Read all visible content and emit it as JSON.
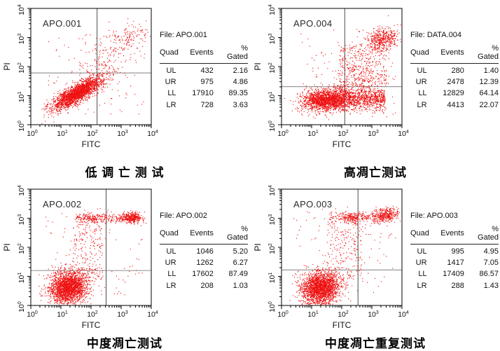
{
  "figure": {
    "background": "#ffffff",
    "dot_color": "#ee1212",
    "axis_color": "#000000",
    "quad_vline_color": "#4d4d4d",
    "quad_hline_color": "#9a9a9a"
  },
  "chart_data": [
    {
      "type": "scatter",
      "plot_name": "APO.001",
      "file": "File: APO.001",
      "caption": "低 调 亡 测 试",
      "xlabel": "FITC",
      "ylabel": "PI",
      "xscale": "log",
      "yscale": "log",
      "xlim_log": [
        0,
        4
      ],
      "ylim_log": [
        0,
        4
      ],
      "tick_exponents": [
        0,
        1,
        2,
        3,
        4
      ],
      "quadrant_gates_log": {
        "x": 2.2,
        "y": 1.78
      },
      "quadrants": {
        "UL": {
          "events": 432,
          "pct_gated": 2.16
        },
        "UR": {
          "events": 975,
          "pct_gated": 4.86
        },
        "LL": {
          "events": 17910,
          "pct_gated": 89.35
        },
        "LR": {
          "events": 728,
          "pct_gated": 3.63
        }
      },
      "table": {
        "headers": [
          "Quad",
          "Events",
          "% Gated"
        ],
        "rows": [
          [
            "UL",
            "432",
            "2.16"
          ],
          [
            "UR",
            "975",
            "4.86"
          ],
          [
            "LL",
            "17910",
            "89.35"
          ],
          [
            "LR",
            "728",
            "3.63"
          ]
        ]
      },
      "clusters": [
        {
          "kind": "gauss",
          "cx": 1.55,
          "cy": 1.08,
          "sx": 0.45,
          "sy": 0.14,
          "rot": 33,
          "n": 2300
        },
        {
          "kind": "gauss",
          "cx": 2.5,
          "cy": 2.1,
          "sx": 0.45,
          "sy": 0.4,
          "rot": 35,
          "n": 160
        },
        {
          "kind": "gauss",
          "cx": 3.25,
          "cy": 3.0,
          "sx": 0.4,
          "sy": 0.22,
          "rot": 15,
          "n": 130
        },
        {
          "kind": "uniform",
          "x0": 0.5,
          "x1": 3.8,
          "y0": 0.3,
          "y1": 3.2,
          "n": 110
        }
      ]
    },
    {
      "type": "scatter",
      "plot_name": "APO.004",
      "file": "File: DATA.004",
      "caption": "高凋亡测试",
      "xlabel": "FITC",
      "ylabel": "PI",
      "xscale": "log",
      "yscale": "log",
      "xlim_log": [
        0,
        4
      ],
      "ylim_log": [
        0,
        4
      ],
      "tick_exponents": [
        0,
        1,
        2,
        3,
        4
      ],
      "quadrant_gates_log": {
        "x": 2.1,
        "y": 1.31
      },
      "quadrants": {
        "UL": {
          "events": 280,
          "pct_gated": 1.4
        },
        "UR": {
          "events": 2478,
          "pct_gated": 12.39
        },
        "LL": {
          "events": 12829,
          "pct_gated": 64.14
        },
        "LR": {
          "events": 4413,
          "pct_gated": 22.07
        }
      },
      "table": {
        "headers": [
          "Quad",
          "Events",
          "% Gated"
        ],
        "rows": [
          [
            "UL",
            "280",
            "1.40"
          ],
          [
            "UR",
            "2478",
            "12.39"
          ],
          [
            "LL",
            "12829",
            "64.14"
          ],
          [
            "LR",
            "4413",
            "22.07"
          ]
        ]
      },
      "clusters": [
        {
          "kind": "gauss",
          "cx": 1.45,
          "cy": 0.85,
          "sx": 0.38,
          "sy": 0.18,
          "rot": 3,
          "n": 1700
        },
        {
          "kind": "hband",
          "x0": 1.7,
          "x1": 3.45,
          "y": 0.9,
          "sy": 0.2,
          "n": 1100
        },
        {
          "kind": "gauss",
          "cx": 3.35,
          "cy": 2.95,
          "sx": 0.28,
          "sy": 0.2,
          "rot": 20,
          "n": 450
        },
        {
          "kind": "uniform",
          "x0": 1.9,
          "x1": 3.5,
          "y0": 1.3,
          "y1": 2.75,
          "n": 330
        },
        {
          "kind": "gauss",
          "cx": 2.6,
          "cy": 1.6,
          "sx": 0.5,
          "sy": 0.3,
          "rot": 20,
          "n": 150
        },
        {
          "kind": "uniform",
          "x0": 0.55,
          "x1": 3.8,
          "y0": 0.25,
          "y1": 3.3,
          "n": 120
        }
      ]
    },
    {
      "type": "scatter",
      "plot_name": "APO.002",
      "file": "File: APO.002",
      "caption": "中度凋亡测试",
      "xlabel": "FITC",
      "ylabel": "PI",
      "xscale": "log",
      "yscale": "log",
      "xlim_log": [
        0,
        4
      ],
      "ylim_log": [
        0,
        4
      ],
      "tick_exponents": [
        0,
        1,
        2,
        3,
        4
      ],
      "quadrant_gates_log": {
        "x": 2.5,
        "y": 1.2
      },
      "quadrants": {
        "UL": {
          "events": 1046,
          "pct_gated": 5.2
        },
        "UR": {
          "events": 1262,
          "pct_gated": 6.27
        },
        "LL": {
          "events": 17602,
          "pct_gated": 87.49
        },
        "LR": {
          "events": 208,
          "pct_gated": 1.03
        }
      },
      "table": {
        "headers": [
          "Quad",
          "Events",
          "% Gated"
        ],
        "rows": [
          [
            "UL",
            "1046",
            "5.20"
          ],
          [
            "UR",
            "1262",
            "6.27"
          ],
          [
            "LL",
            "17602",
            "87.49"
          ],
          [
            "LR",
            "208",
            "1.03"
          ]
        ]
      },
      "clusters": [
        {
          "kind": "gauss",
          "cx": 1.25,
          "cy": 0.62,
          "sx": 0.32,
          "sy": 0.28,
          "rot": 28,
          "n": 2300
        },
        {
          "kind": "hband",
          "x0": 1.5,
          "x1": 3.6,
          "y": 3.0,
          "sy": 0.09,
          "n": 240
        },
        {
          "kind": "gauss",
          "cx": 3.35,
          "cy": 3.02,
          "sx": 0.18,
          "sy": 0.09,
          "rot": 0,
          "n": 300
        },
        {
          "kind": "gauss",
          "cx": 2.0,
          "cy": 3.0,
          "sx": 0.18,
          "sy": 0.08,
          "rot": 0,
          "n": 90
        },
        {
          "kind": "uniform",
          "x0": 1.4,
          "x1": 2.4,
          "y0": 0.9,
          "y1": 2.9,
          "n": 190
        },
        {
          "kind": "uniform",
          "x0": 0.4,
          "x1": 3.7,
          "y0": 0.15,
          "y1": 3.35,
          "n": 100
        }
      ]
    },
    {
      "type": "scatter",
      "plot_name": "APO.003",
      "file": "File: APO.003",
      "caption": "中度凋亡重复测试",
      "xlabel": "FITC",
      "ylabel": "PI",
      "xscale": "log",
      "yscale": "log",
      "xlim_log": [
        0,
        4
      ],
      "ylim_log": [
        0,
        4
      ],
      "tick_exponents": [
        0,
        1,
        2,
        3,
        4
      ],
      "quadrant_gates_log": {
        "x": 2.54,
        "y": 1.22
      },
      "quadrants": {
        "UL": {
          "events": 995,
          "pct_gated": 4.95
        },
        "UR": {
          "events": 1417,
          "pct_gated": 7.05
        },
        "LL": {
          "events": 17409,
          "pct_gated": 86.57
        },
        "LR": {
          "events": 288,
          "pct_gated": 1.43
        }
      },
      "table": {
        "headers": [
          "Quad",
          "Events",
          "% Gated"
        ],
        "rows": [
          [
            "UL",
            "995",
            "4.95"
          ],
          [
            "UR",
            "1417",
            "7.05"
          ],
          [
            "LL",
            "17409",
            "86.57"
          ],
          [
            "LR",
            "288",
            "1.43"
          ]
        ]
      },
      "clusters": [
        {
          "kind": "gauss",
          "cx": 1.3,
          "cy": 0.6,
          "sx": 0.32,
          "sy": 0.28,
          "rot": 28,
          "n": 2300
        },
        {
          "kind": "hband",
          "x0": 1.6,
          "x1": 3.65,
          "y": 3.05,
          "sy": 0.1,
          "n": 220
        },
        {
          "kind": "gauss",
          "cx": 2.3,
          "cy": 3.0,
          "sx": 0.16,
          "sy": 0.08,
          "rot": 0,
          "n": 130
        },
        {
          "kind": "gauss",
          "cx": 3.45,
          "cy": 3.1,
          "sx": 0.22,
          "sy": 0.13,
          "rot": 10,
          "n": 300
        },
        {
          "kind": "uniform",
          "x0": 1.5,
          "x1": 2.7,
          "y0": 0.9,
          "y1": 2.9,
          "n": 210
        },
        {
          "kind": "uniform",
          "x0": 0.4,
          "x1": 3.8,
          "y0": 0.15,
          "y1": 3.4,
          "n": 110
        }
      ]
    }
  ]
}
